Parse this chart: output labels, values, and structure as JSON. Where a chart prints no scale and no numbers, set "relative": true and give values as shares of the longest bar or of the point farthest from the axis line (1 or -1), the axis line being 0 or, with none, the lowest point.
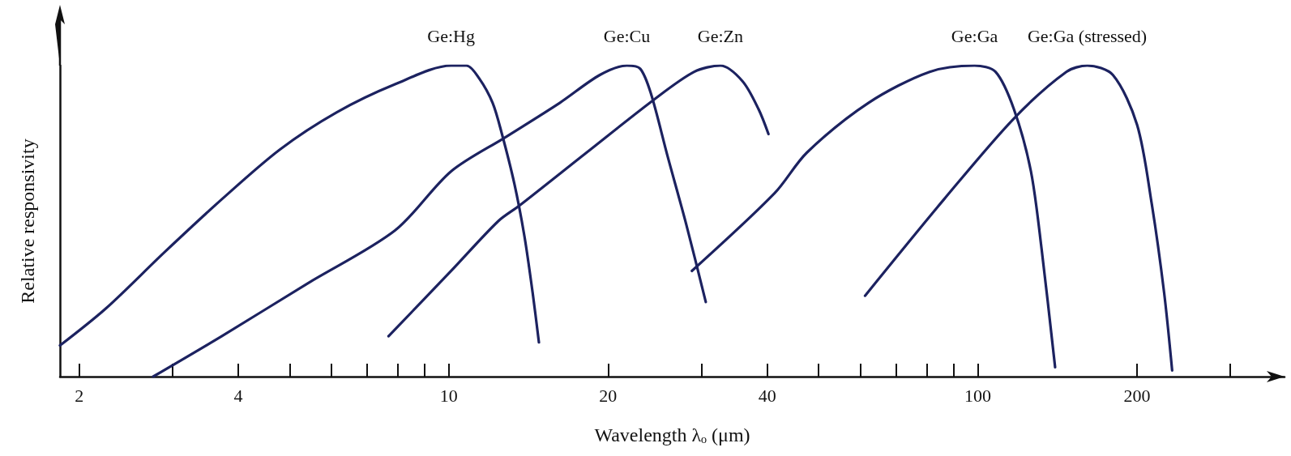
{
  "chart_data": {
    "type": "line",
    "relative": true,
    "xlabel": "Wavelength λₒ (μm)",
    "ylabel": "Relative responsivity",
    "log": "x",
    "xlim": [
      1.84,
      380
    ],
    "xticks": [
      2,
      {
        "value": 3,
        "label": null
      },
      4,
      {
        "value": 5,
        "label": null
      },
      {
        "value": 6,
        "label": null
      },
      {
        "value": 7,
        "label": null
      },
      {
        "value": 8,
        "label": null
      },
      {
        "value": 9,
        "label": null
      },
      10,
      20,
      {
        "value": 30,
        "label": null
      },
      40,
      {
        "value": 50,
        "label": null
      },
      {
        "value": 60,
        "label": null
      },
      {
        "value": 70,
        "label": null
      },
      {
        "value": 80,
        "label": null
      },
      {
        "value": 90,
        "label": null
      },
      100,
      200,
      {
        "value": 300,
        "label": null
      }
    ],
    "grid": false,
    "legend": false,
    "marker": "none",
    "line_style": "solid",
    "series": [
      {
        "name": "Ge:Hg",
        "color": "#1c2260",
        "x": [
          1.84,
          2.25,
          2.9,
          3.72,
          4.79,
          6.14,
          7.91,
          10.1,
          10.8,
          11.4,
          12.1,
          12.6,
          13.3,
          13.9,
          14.4,
          14.8
        ],
        "values": [
          0.1,
          0.22,
          0.4,
          0.57,
          0.73,
          0.85,
          0.94,
          1.0,
          1.0,
          0.96,
          0.88,
          0.78,
          0.62,
          0.45,
          0.27,
          0.11
        ]
      },
      {
        "name": "Ge:Cu",
        "color": "#1c2260",
        "x": [
          2.76,
          3.72,
          5.41,
          7.91,
          10.1,
          12.8,
          16.2,
          19.3,
          21.7,
          23.0,
          24.1,
          25.9,
          28.1,
          30.6
        ],
        "values": [
          0,
          0.13,
          0.3,
          0.47,
          0.66,
          0.77,
          0.88,
          0.97,
          1.0,
          0.99,
          0.91,
          0.71,
          0.49,
          0.24
        ]
      },
      {
        "name": "Ge:Zn",
        "color": "#1c2260",
        "x": [
          7.69,
          10.1,
          12.4,
          13.6,
          18.2,
          24.4,
          29.1,
          32.6,
          35.9,
          38.5,
          40.2
        ],
        "values": [
          0.13,
          0.34,
          0.5,
          0.55,
          0.72,
          0.89,
          0.98,
          1.0,
          0.95,
          0.86,
          0.78
        ]
      },
      {
        "name": "Ge:Ga",
        "color": "#1c2260",
        "x": [
          28.8,
          41.3,
          47.5,
          62.1,
          81.1,
          98.6,
          108,
          117,
          126,
          132,
          140
        ],
        "values": [
          0.34,
          0.59,
          0.72,
          0.88,
          0.98,
          1.0,
          0.98,
          0.86,
          0.66,
          0.41,
          0.03
        ]
      },
      {
        "name": "Ge:Ga (stressed)",
        "color": "#1c2260",
        "x": [
          61.2,
          86.3,
          117,
          147,
          161,
          180,
          200,
          213,
          225,
          233
        ],
        "values": [
          0.26,
          0.57,
          0.83,
          0.98,
          1.0,
          0.97,
          0.81,
          0.56,
          0.27,
          0.02
        ]
      }
    ]
  }
}
